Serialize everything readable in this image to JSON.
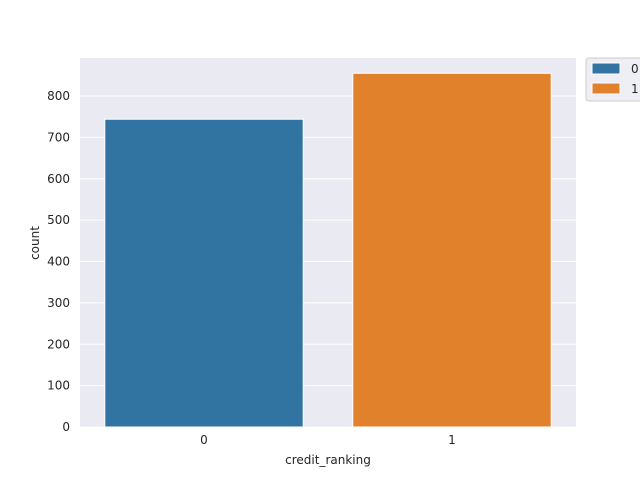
{
  "chart_data": {
    "type": "bar",
    "title": "",
    "xlabel": "credit_ranking",
    "ylabel": "count",
    "categories": [
      "0",
      "1"
    ],
    "values": [
      744,
      855
    ],
    "colors": [
      "#3274a1",
      "#e1812c"
    ],
    "ylim": [
      0,
      892
    ],
    "yticks": [
      0,
      100,
      200,
      300,
      400,
      500,
      600,
      700,
      800
    ],
    "ytick_labels": [
      "0",
      "100",
      "200",
      "300",
      "400",
      "500",
      "600",
      "700",
      "800"
    ],
    "grid": true,
    "background": "#eaeaf2",
    "legend": {
      "placement": "outside-top-right",
      "entries": [
        {
          "label": "0",
          "color": "#3274a1"
        },
        {
          "label": "1",
          "color": "#e1812c"
        }
      ]
    }
  }
}
